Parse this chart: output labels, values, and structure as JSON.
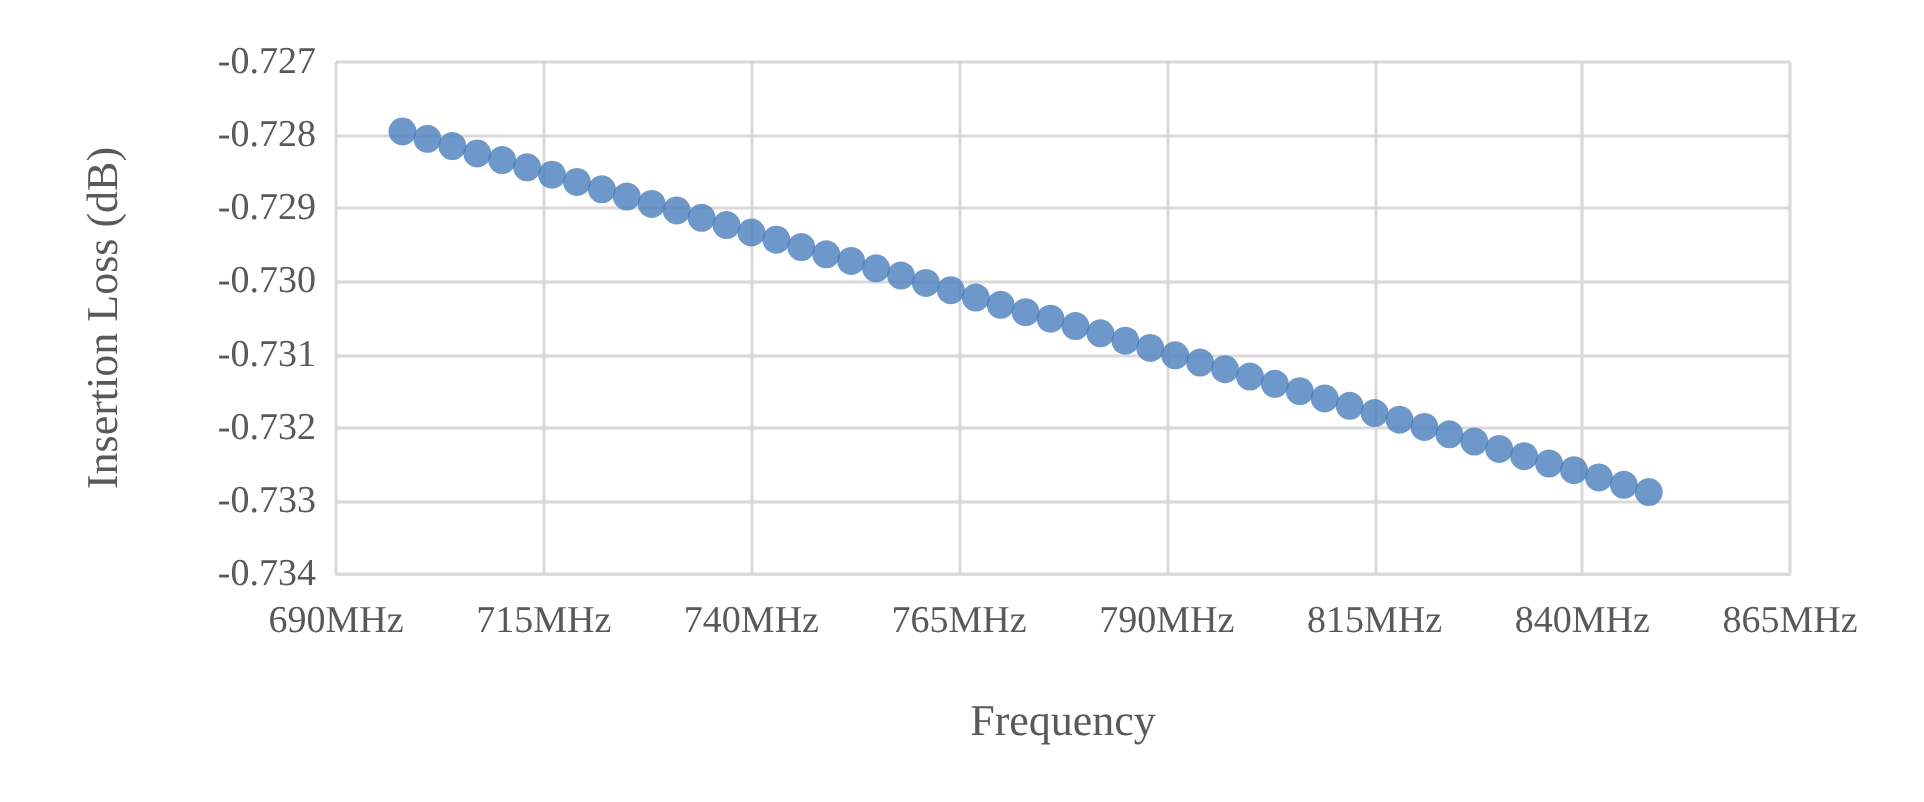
{
  "chart_data": {
    "type": "scatter",
    "xlabel": "Frequency",
    "ylabel": "Insertion Loss (dB)",
    "x": [
      698,
      701,
      704,
      707,
      710,
      713,
      716,
      719,
      722,
      725,
      728,
      731,
      734,
      737,
      740,
      743,
      746,
      749,
      752,
      755,
      758,
      761,
      764,
      767,
      770,
      773,
      776,
      779,
      782,
      785,
      788,
      791,
      794,
      797,
      800,
      803,
      806,
      809,
      812,
      815,
      818,
      821,
      824,
      827,
      830,
      833,
      836,
      839,
      842,
      845,
      848
    ],
    "series": [
      {
        "color": "#4a7ebb",
        "values": [
          -0.72795,
          -0.72805,
          -0.72815,
          -0.72825,
          -0.72834,
          -0.72844,
          -0.72854,
          -0.72864,
          -0.72874,
          -0.72884,
          -0.72894,
          -0.72903,
          -0.72913,
          -0.72923,
          -0.72933,
          -0.72943,
          -0.72953,
          -0.72963,
          -0.72972,
          -0.72982,
          -0.72992,
          -0.73002,
          -0.73012,
          -0.73022,
          -0.73032,
          -0.73042,
          -0.73051,
          -0.73061,
          -0.73071,
          -0.73081,
          -0.73091,
          -0.73101,
          -0.73111,
          -0.7312,
          -0.7313,
          -0.7314,
          -0.7315,
          -0.7316,
          -0.7317,
          -0.7318,
          -0.73189,
          -0.73199,
          -0.73209,
          -0.73219,
          -0.73229,
          -0.73239,
          -0.73249,
          -0.73258,
          -0.73268,
          -0.73278,
          -0.73288
        ]
      }
    ],
    "xlim": [
      690,
      865
    ],
    "xticks": [
      {
        "value": 690,
        "label": "690MHz"
      },
      {
        "value": 715,
        "label": "715MHz"
      },
      {
        "value": 740,
        "label": "740MHz"
      },
      {
        "value": 765,
        "label": "765MHz"
      },
      {
        "value": 790,
        "label": "790MHz"
      },
      {
        "value": 815,
        "label": "815MHz"
      },
      {
        "value": 840,
        "label": "840MHz"
      },
      {
        "value": 865,
        "label": "865MHz"
      }
    ],
    "ylim": [
      -0.734,
      -0.727
    ],
    "yticks": [
      -0.734,
      -0.733,
      -0.732,
      -0.731,
      {
        "value": -0.73,
        "label": "-0.730"
      },
      -0.729,
      -0.728,
      -0.727
    ],
    "grid": true,
    "marker": "circle"
  }
}
